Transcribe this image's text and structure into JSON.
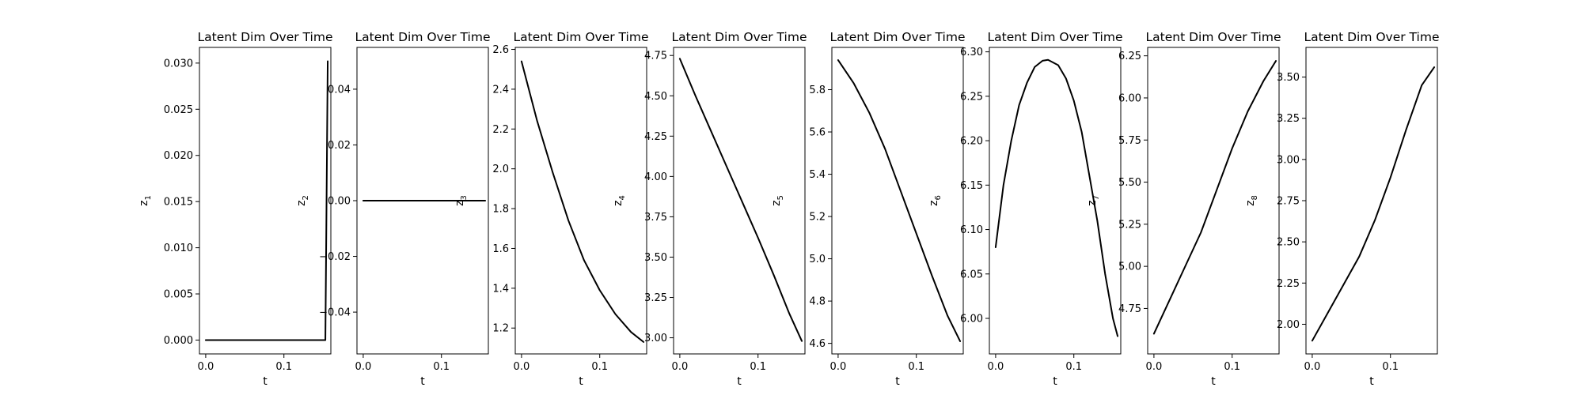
{
  "chart_data": [
    {
      "type": "line",
      "title": "Latent Dim Over Time",
      "xlabel": "t",
      "ylabel": "z",
      "ylabel_sub": "1",
      "xlim": [
        -0.008,
        0.16
      ],
      "ylim": [
        -0.0015,
        0.0317
      ],
      "xticks": [
        {
          "v": 0.0,
          "label": "0.0"
        },
        {
          "v": 0.1,
          "label": "0.1"
        }
      ],
      "yticks": [
        {
          "v": 0.0,
          "label": "0.000"
        },
        {
          "v": 0.005,
          "label": "0.005"
        },
        {
          "v": 0.01,
          "label": "0.010"
        },
        {
          "v": 0.015,
          "label": "0.015"
        },
        {
          "v": 0.02,
          "label": "0.020"
        },
        {
          "v": 0.025,
          "label": "0.025"
        },
        {
          "v": 0.03,
          "label": "0.030"
        }
      ],
      "series": [
        {
          "x": [
            0.0,
            0.05,
            0.1,
            0.15,
            0.153,
            0.155,
            0.156
          ],
          "y": [
            0.0,
            0.0,
            0.0,
            0.0,
            0.0,
            0.02,
            0.0302
          ]
        }
      ]
    },
    {
      "type": "line",
      "title": "Latent Dim Over Time",
      "xlabel": "t",
      "ylabel": "z",
      "ylabel_sub": "2",
      "xlim": [
        -0.008,
        0.16
      ],
      "ylim": [
        -0.055,
        0.055
      ],
      "xticks": [
        {
          "v": 0.0,
          "label": "0.0"
        },
        {
          "v": 0.1,
          "label": "0.1"
        }
      ],
      "yticks": [
        {
          "v": -0.04,
          "label": "−0.04"
        },
        {
          "v": -0.02,
          "label": "−0.02"
        },
        {
          "v": 0.0,
          "label": "0.00"
        },
        {
          "v": 0.02,
          "label": "0.02"
        },
        {
          "v": 0.04,
          "label": "0.04"
        }
      ],
      "series": [
        {
          "x": [
            0.0,
            0.156
          ],
          "y": [
            0.0,
            0.0
          ]
        }
      ]
    },
    {
      "type": "line",
      "title": "Latent Dim Over Time",
      "xlabel": "t",
      "ylabel": "z",
      "ylabel_sub": "3",
      "xlim": [
        -0.008,
        0.16
      ],
      "ylim": [
        1.07,
        2.61
      ],
      "xticks": [
        {
          "v": 0.0,
          "label": "0.0"
        },
        {
          "v": 0.1,
          "label": "0.1"
        }
      ],
      "yticks": [
        {
          "v": 1.2,
          "label": "1.2"
        },
        {
          "v": 1.4,
          "label": "1.4"
        },
        {
          "v": 1.6,
          "label": "1.6"
        },
        {
          "v": 1.8,
          "label": "1.8"
        },
        {
          "v": 2.0,
          "label": "2.0"
        },
        {
          "v": 2.2,
          "label": "2.2"
        },
        {
          "v": 2.4,
          "label": "2.4"
        },
        {
          "v": 2.6,
          "label": "2.6"
        }
      ],
      "series": [
        {
          "x": [
            0.0,
            0.02,
            0.04,
            0.06,
            0.08,
            0.1,
            0.12,
            0.14,
            0.156
          ],
          "y": [
            2.54,
            2.24,
            1.98,
            1.74,
            1.54,
            1.39,
            1.27,
            1.18,
            1.13
          ]
        }
      ]
    },
    {
      "type": "line",
      "title": "Latent Dim Over Time",
      "xlabel": "t",
      "ylabel": "z",
      "ylabel_sub": "4",
      "xlim": [
        -0.008,
        0.16
      ],
      "ylim": [
        2.9,
        4.8
      ],
      "xticks": [
        {
          "v": 0.0,
          "label": "0.0"
        },
        {
          "v": 0.1,
          "label": "0.1"
        }
      ],
      "yticks": [
        {
          "v": 3.0,
          "label": "3.00"
        },
        {
          "v": 3.25,
          "label": "3.25"
        },
        {
          "v": 3.5,
          "label": "3.50"
        },
        {
          "v": 3.75,
          "label": "3.75"
        },
        {
          "v": 4.0,
          "label": "4.00"
        },
        {
          "v": 4.25,
          "label": "4.25"
        },
        {
          "v": 4.5,
          "label": "4.50"
        },
        {
          "v": 4.75,
          "label": "4.75"
        }
      ],
      "series": [
        {
          "x": [
            0.0,
            0.02,
            0.04,
            0.06,
            0.08,
            0.1,
            0.12,
            0.14,
            0.156
          ],
          "y": [
            4.73,
            4.5,
            4.28,
            4.06,
            3.84,
            3.62,
            3.39,
            3.15,
            2.98
          ]
        }
      ]
    },
    {
      "type": "line",
      "title": "Latent Dim Over Time",
      "xlabel": "t",
      "ylabel": "z",
      "ylabel_sub": "5",
      "xlim": [
        -0.008,
        0.16
      ],
      "ylim": [
        4.55,
        6.0
      ],
      "xticks": [
        {
          "v": 0.0,
          "label": "0.0"
        },
        {
          "v": 0.1,
          "label": "0.1"
        }
      ],
      "yticks": [
        {
          "v": 4.6,
          "label": "4.6"
        },
        {
          "v": 4.8,
          "label": "4.8"
        },
        {
          "v": 5.0,
          "label": "5.0"
        },
        {
          "v": 5.2,
          "label": "5.2"
        },
        {
          "v": 5.4,
          "label": "5.4"
        },
        {
          "v": 5.6,
          "label": "5.6"
        },
        {
          "v": 5.8,
          "label": "5.8"
        }
      ],
      "series": [
        {
          "x": [
            0.0,
            0.02,
            0.04,
            0.06,
            0.08,
            0.1,
            0.12,
            0.14,
            0.156
          ],
          "y": [
            5.94,
            5.83,
            5.69,
            5.52,
            5.32,
            5.12,
            4.92,
            4.73,
            4.61
          ]
        }
      ]
    },
    {
      "type": "line",
      "title": "Latent Dim Over Time",
      "xlabel": "t",
      "ylabel": "z",
      "ylabel_sub": "6",
      "xlim": [
        -0.008,
        0.16
      ],
      "ylim": [
        5.96,
        6.305
      ],
      "xticks": [
        {
          "v": 0.0,
          "label": "0.0"
        },
        {
          "v": 0.1,
          "label": "0.1"
        }
      ],
      "yticks": [
        {
          "v": 6.0,
          "label": "6.00"
        },
        {
          "v": 6.05,
          "label": "6.05"
        },
        {
          "v": 6.1,
          "label": "6.10"
        },
        {
          "v": 6.15,
          "label": "6.15"
        },
        {
          "v": 6.2,
          "label": "6.20"
        },
        {
          "v": 6.25,
          "label": "6.25"
        },
        {
          "v": 6.3,
          "label": "6.30"
        }
      ],
      "series": [
        {
          "x": [
            0.0,
            0.01,
            0.02,
            0.03,
            0.04,
            0.05,
            0.06,
            0.067,
            0.08,
            0.09,
            0.1,
            0.11,
            0.12,
            0.13,
            0.14,
            0.15,
            0.156
          ],
          "y": [
            6.08,
            6.15,
            6.2,
            6.24,
            6.265,
            6.283,
            6.29,
            6.291,
            6.285,
            6.27,
            6.245,
            6.21,
            6.16,
            6.11,
            6.05,
            6.0,
            5.98
          ]
        }
      ]
    },
    {
      "type": "line",
      "title": "Latent Dim Over Time",
      "xlabel": "t",
      "ylabel": "z",
      "ylabel_sub": "7",
      "xlim": [
        -0.008,
        0.16
      ],
      "ylim": [
        4.48,
        6.3
      ],
      "xticks": [
        {
          "v": 0.0,
          "label": "0.0"
        },
        {
          "v": 0.1,
          "label": "0.1"
        }
      ],
      "yticks": [
        {
          "v": 4.75,
          "label": "4.75"
        },
        {
          "v": 5.0,
          "label": "5.00"
        },
        {
          "v": 5.25,
          "label": "5.25"
        },
        {
          "v": 5.5,
          "label": "5.50"
        },
        {
          "v": 5.75,
          "label": "5.75"
        },
        {
          "v": 6.0,
          "label": "6.00"
        },
        {
          "v": 6.25,
          "label": "6.25"
        }
      ],
      "series": [
        {
          "x": [
            0.0,
            0.02,
            0.04,
            0.06,
            0.08,
            0.1,
            0.12,
            0.14,
            0.156
          ],
          "y": [
            4.6,
            4.8,
            5.0,
            5.2,
            5.45,
            5.7,
            5.92,
            6.1,
            6.22
          ]
        }
      ]
    },
    {
      "type": "line",
      "title": "Latent Dim Over Time",
      "xlabel": "t",
      "ylabel": "z",
      "ylabel_sub": "8",
      "xlim": [
        -0.008,
        0.16
      ],
      "ylim": [
        1.82,
        3.68
      ],
      "xticks": [
        {
          "v": 0.0,
          "label": "0.0"
        },
        {
          "v": 0.1,
          "label": "0.1"
        }
      ],
      "yticks": [
        {
          "v": 2.0,
          "label": "2.00"
        },
        {
          "v": 2.25,
          "label": "2.25"
        },
        {
          "v": 2.5,
          "label": "2.50"
        },
        {
          "v": 2.75,
          "label": "2.75"
        },
        {
          "v": 3.0,
          "label": "3.00"
        },
        {
          "v": 3.25,
          "label": "3.25"
        },
        {
          "v": 3.5,
          "label": "3.50"
        }
      ],
      "series": [
        {
          "x": [
            0.0,
            0.02,
            0.04,
            0.06,
            0.08,
            0.1,
            0.12,
            0.14,
            0.156
          ],
          "y": [
            1.9,
            2.07,
            2.24,
            2.41,
            2.63,
            2.89,
            3.18,
            3.45,
            3.56
          ]
        }
      ]
    }
  ]
}
